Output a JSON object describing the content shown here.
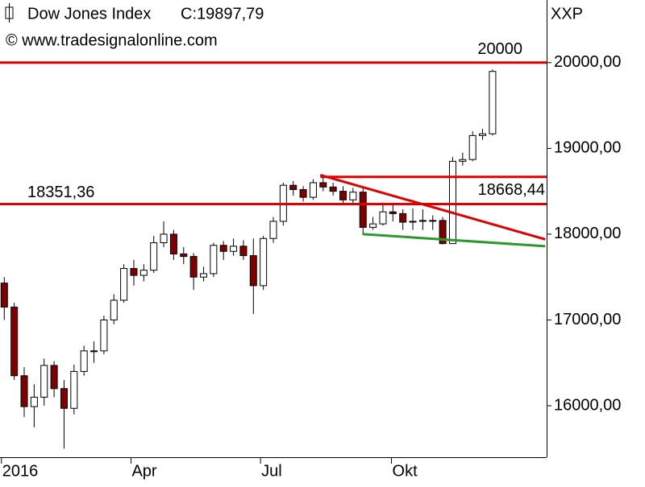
{
  "chart_data": {
    "type": "candlestick",
    "y_axis_label": "XXP",
    "source": "© www.tradesignalonline.com",
    "last_label": "C:19897,79",
    "last_label_color": "#1aa01a",
    "up_color": "#ffffff",
    "down_color": "#800000",
    "xlim": [
      -1,
      383
    ],
    "ylim": [
      15400,
      20730
    ],
    "xticks": [
      {
        "value": 0,
        "label": "2016"
      },
      {
        "value": 91,
        "label": "Apr"
      },
      {
        "value": 182,
        "label": "Jul"
      },
      {
        "value": 274,
        "label": "Okt"
      }
    ],
    "yticks": [
      {
        "value": 16000,
        "label": "16000,00"
      },
      {
        "value": 17000,
        "label": "17000,00"
      },
      {
        "value": 18000,
        "label": "18000,00"
      },
      {
        "value": 19000,
        "label": "19000,00"
      },
      {
        "value": 20000,
        "label": "20000,00"
      }
    ],
    "x": [
      2,
      9,
      16,
      23,
      30,
      37,
      44,
      51,
      58,
      65,
      72,
      79,
      86,
      93,
      100,
      107,
      114,
      121,
      128,
      135,
      142,
      149,
      156,
      163,
      170,
      177,
      184,
      191,
      198,
      205,
      212,
      219,
      226,
      233,
      240,
      247,
      254,
      261,
      268,
      275,
      282,
      289,
      296,
      303,
      310,
      317,
      324,
      331,
      338,
      345
    ],
    "series": [
      {
        "name": "Dow Jones Index",
        "open": [
          17430,
          17150,
          16350,
          15990,
          16100,
          16470,
          16200,
          15970,
          16400,
          16640,
          16640,
          17000,
          17230,
          17600,
          17520,
          17580,
          17900,
          18000,
          17770,
          17740,
          17500,
          17540,
          17870,
          17800,
          17860,
          17750,
          17400,
          17950,
          18150,
          18570,
          18520,
          18430,
          18600,
          18550,
          18500,
          18400,
          18490,
          18080,
          18120,
          18260,
          18240,
          18140,
          18150,
          18160,
          18160,
          17890,
          18850,
          18870,
          19150,
          19170
        ],
        "high": [
          17500,
          17200,
          16450,
          16250,
          16550,
          16520,
          16300,
          16480,
          16700,
          16750,
          17050,
          17300,
          17650,
          17700,
          17650,
          17980,
          18150,
          18050,
          17850,
          17780,
          17620,
          17900,
          17920,
          17950,
          17930,
          17950,
          17980,
          18200,
          18600,
          18620,
          18560,
          18640,
          18670,
          18600,
          18560,
          18540,
          18540,
          18200,
          18370,
          18340,
          18290,
          18300,
          18290,
          18220,
          18200,
          18900,
          18950,
          19200,
          19230,
          19920
        ],
        "low": [
          17000,
          16300,
          15870,
          15750,
          16000,
          16100,
          15500,
          15900,
          16350,
          16500,
          16600,
          16950,
          17200,
          17400,
          17450,
          17550,
          17850,
          17700,
          17650,
          17350,
          17450,
          17500,
          17700,
          17750,
          17700,
          17070,
          17350,
          17900,
          18100,
          18450,
          18380,
          18400,
          18500,
          18450,
          18350,
          18350,
          17990,
          18050,
          18100,
          18150,
          18050,
          18050,
          18050,
          18050,
          17880,
          17900,
          18800,
          18850,
          19100,
          19150
        ],
        "close": [
          17150,
          16350,
          15990,
          16100,
          16470,
          16200,
          15970,
          16400,
          16640,
          16640,
          17000,
          17230,
          17600,
          17520,
          17580,
          17900,
          18000,
          17770,
          17740,
          17500,
          17540,
          17870,
          17800,
          17860,
          17750,
          17400,
          17950,
          18150,
          18570,
          18520,
          18430,
          18600,
          18550,
          18500,
          18400,
          18490,
          18080,
          18120,
          18260,
          18240,
          18140,
          18150,
          18160,
          18160,
          17890,
          18850,
          18870,
          19150,
          19170,
          19897.79
        ]
      }
    ],
    "levels": [
      {
        "value": 20000,
        "label": "20000",
        "color": "#e00000"
      },
      {
        "value": 18351.36,
        "label": "18351,36",
        "color": "#e00000"
      },
      {
        "value": 18668.44,
        "label": "18668,44",
        "color": "#e00000",
        "x_start": 224
      }
    ],
    "trend_lines": [
      {
        "color": "#e00000",
        "x": [
          224,
          382
        ],
        "y": [
          18690,
          17940
        ]
      },
      {
        "color": "#2a9a2a",
        "x": [
          254,
          382
        ],
        "y": [
          18000,
          17860
        ]
      }
    ]
  }
}
